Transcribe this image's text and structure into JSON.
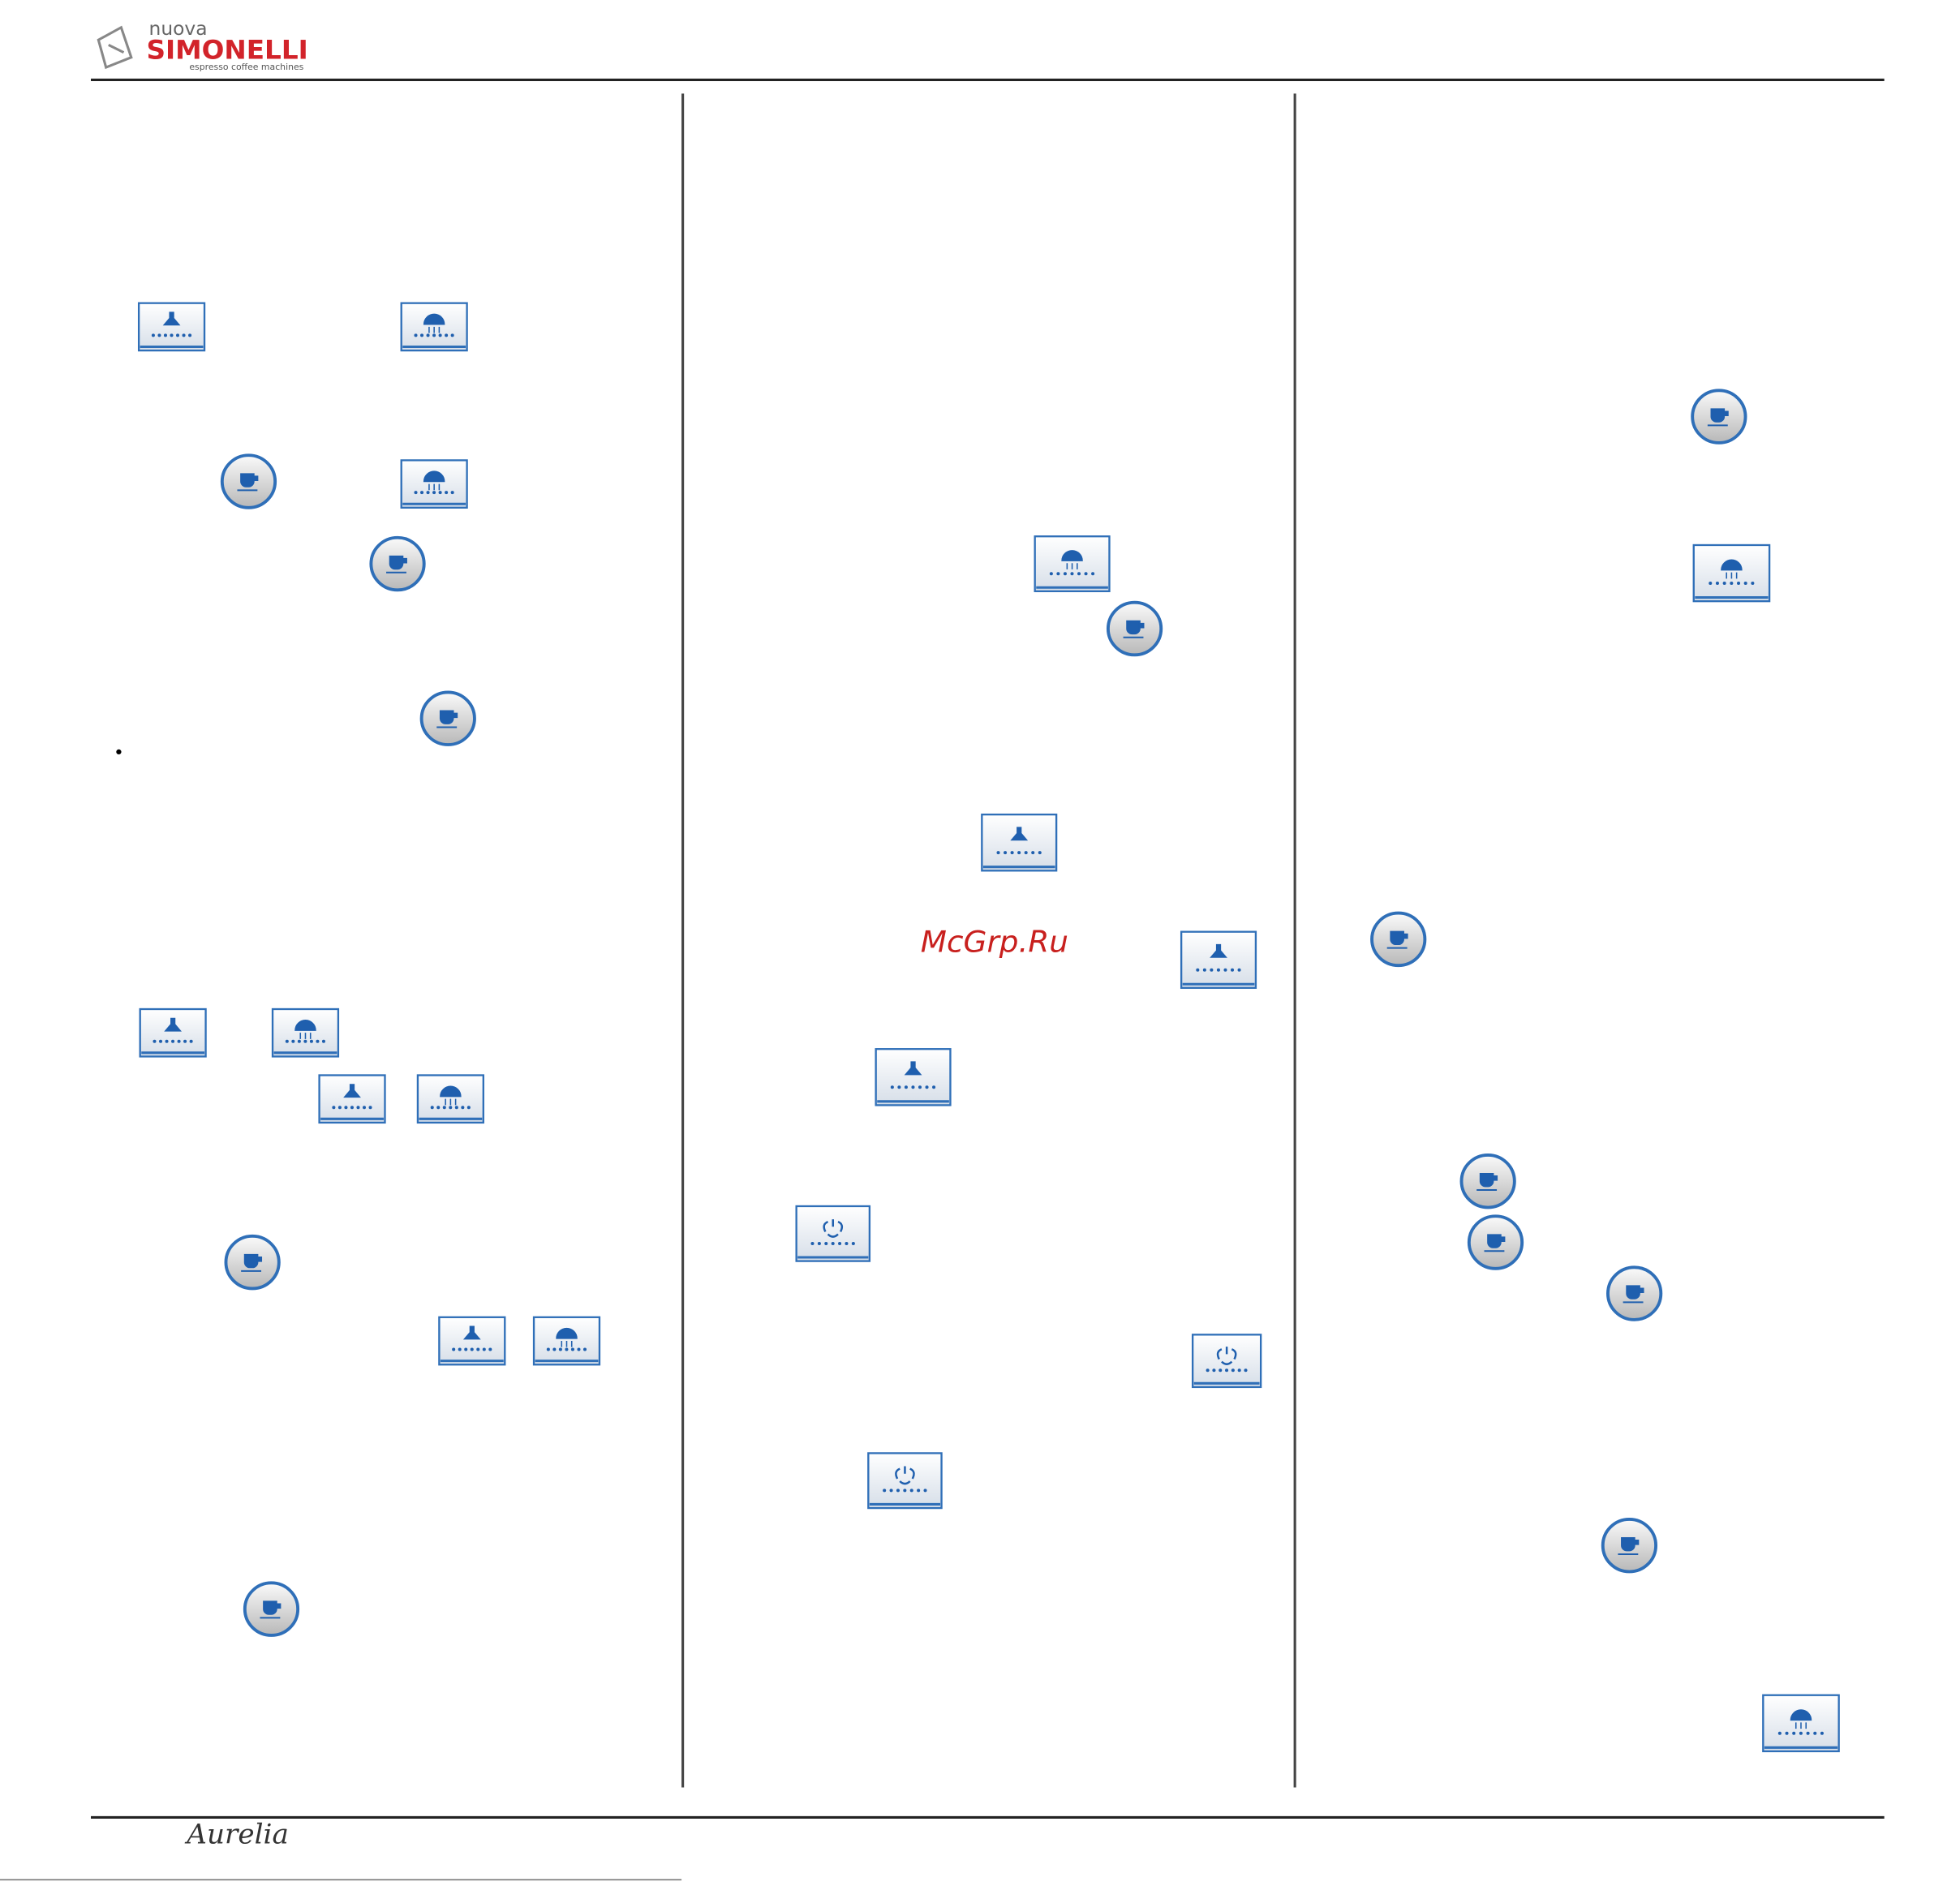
{
  "header": {
    "brand_small": "nuova",
    "brand": "SIMONELLI",
    "tagline": "espresso coffee machines"
  },
  "watermark": "McGrp.Ru",
  "bullet": "•",
  "footer": {
    "model": "Aurelia"
  }
}
